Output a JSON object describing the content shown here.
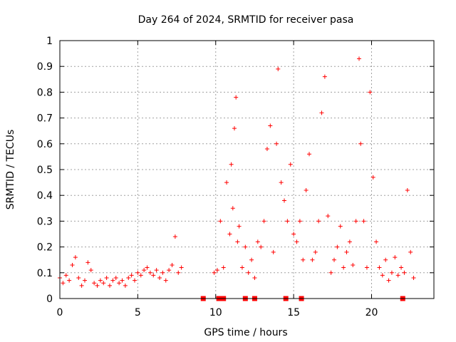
{
  "chart_data": {
    "type": "scatter",
    "title": "Day 264 of 2024, SRMTID for receiver pasa",
    "xlabel": "GPS time / hours",
    "ylabel": "SRMTID / TECUs",
    "xlim": [
      0,
      24
    ],
    "ylim": [
      0,
      1
    ],
    "x_ticks": [
      0,
      5,
      10,
      15,
      20
    ],
    "x_tick_labels": [
      "0",
      "5",
      "10",
      "15",
      "20"
    ],
    "y_ticks": [
      0,
      0.1,
      0.2,
      0.3,
      0.4,
      0.5,
      0.6,
      0.7,
      0.8,
      0.9,
      1
    ],
    "y_tick_labels": [
      "0",
      "0.1",
      "0.2",
      "0.3",
      "0.4",
      "0.5",
      "0.6",
      "0.7",
      "0.8",
      "0.9",
      "1"
    ],
    "grid": true,
    "marker": "plus",
    "series": [
      {
        "name": "SRMTID",
        "color": "#ff0000",
        "x": [
          0.0,
          0.2,
          0.4,
          0.6,
          0.8,
          1.0,
          1.2,
          1.4,
          1.6,
          1.8,
          2.0,
          2.2,
          2.4,
          2.6,
          2.8,
          3.0,
          3.2,
          3.4,
          3.6,
          3.8,
          4.0,
          4.2,
          4.4,
          4.6,
          4.8,
          5.0,
          5.2,
          5.4,
          5.6,
          5.8,
          6.0,
          6.2,
          6.4,
          6.6,
          6.8,
          7.0,
          7.2,
          7.4,
          7.6,
          7.8,
          9.9,
          10.1,
          10.3,
          10.5,
          10.7,
          10.9,
          11.0,
          11.1,
          11.2,
          11.3,
          11.4,
          11.5,
          11.7,
          11.9,
          12.1,
          12.3,
          12.5,
          12.7,
          12.9,
          13.1,
          13.3,
          13.5,
          13.7,
          13.9,
          14.0,
          14.2,
          14.4,
          14.6,
          14.8,
          15.0,
          15.2,
          15.4,
          15.6,
          15.8,
          16.0,
          16.2,
          16.4,
          16.6,
          16.8,
          17.0,
          17.2,
          17.4,
          17.6,
          17.8,
          18.0,
          18.2,
          18.4,
          18.6,
          18.8,
          19.0,
          19.2,
          19.3,
          19.5,
          19.7,
          19.9,
          20.1,
          20.3,
          20.5,
          20.7,
          20.9,
          21.1,
          21.3,
          21.5,
          21.7,
          21.9,
          22.1,
          22.3,
          22.5,
          22.7
        ],
        "y": [
          0.08,
          0.06,
          0.09,
          0.07,
          0.13,
          0.16,
          0.08,
          0.05,
          0.07,
          0.14,
          0.11,
          0.06,
          0.05,
          0.07,
          0.06,
          0.08,
          0.05,
          0.07,
          0.08,
          0.06,
          0.07,
          0.05,
          0.08,
          0.09,
          0.07,
          0.1,
          0.09,
          0.11,
          0.12,
          0.1,
          0.09,
          0.11,
          0.08,
          0.1,
          0.07,
          0.11,
          0.13,
          0.24,
          0.1,
          0.12,
          0.1,
          0.11,
          0.3,
          0.12,
          0.45,
          0.25,
          0.52,
          0.35,
          0.66,
          0.78,
          0.22,
          0.28,
          0.12,
          0.2,
          0.1,
          0.15,
          0.08,
          0.22,
          0.2,
          0.3,
          0.58,
          0.67,
          0.18,
          0.6,
          0.89,
          0.45,
          0.38,
          0.3,
          0.52,
          0.25,
          0.22,
          0.3,
          0.15,
          0.42,
          0.56,
          0.15,
          0.18,
          0.3,
          0.72,
          0.86,
          0.32,
          0.1,
          0.15,
          0.2,
          0.28,
          0.12,
          0.18,
          0.22,
          0.13,
          0.3,
          0.93,
          0.6,
          0.3,
          0.12,
          0.8,
          0.47,
          0.22,
          0.12,
          0.09,
          0.15,
          0.07,
          0.1,
          0.16,
          0.09,
          0.12,
          0.1,
          0.42,
          0.18,
          0.08
        ],
        "zero_x": [
          9.2,
          10.2,
          10.5,
          11.9,
          12.5,
          14.5,
          15.5,
          22.0
        ]
      }
    ]
  }
}
